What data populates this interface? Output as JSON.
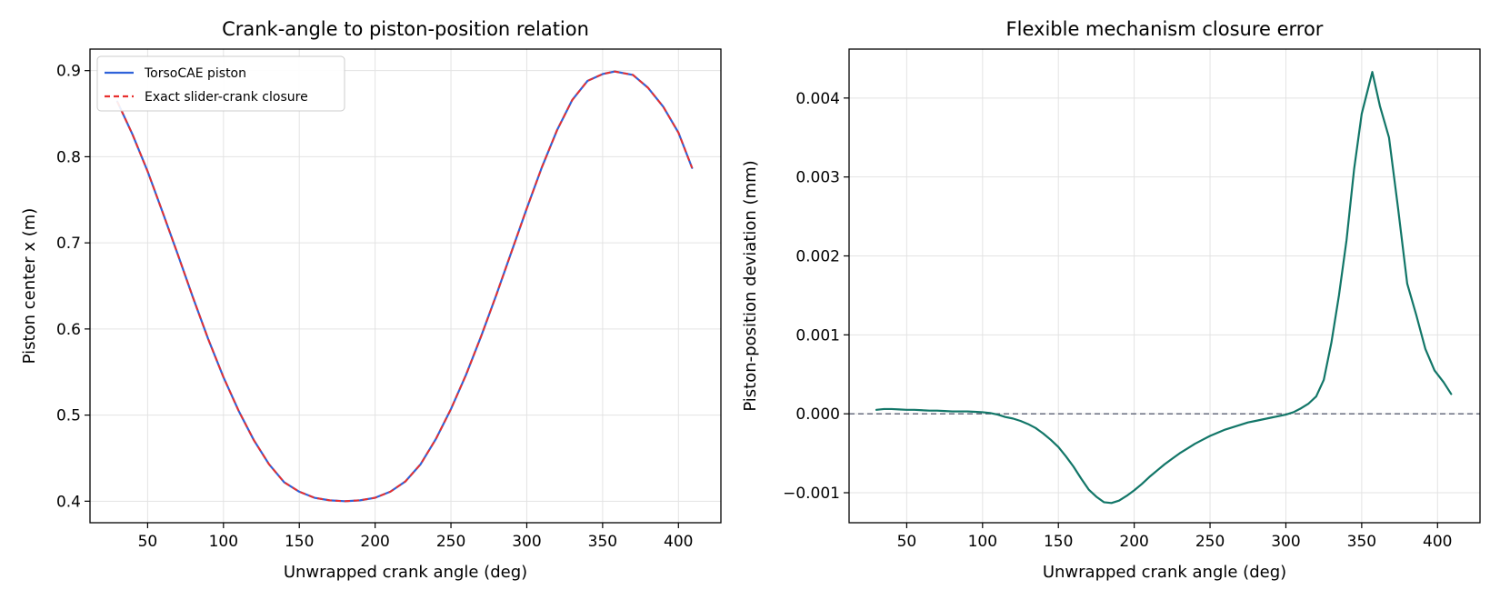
{
  "chart_data": [
    {
      "type": "line",
      "title": "Crank-angle to piston-position relation",
      "xlabel": "Unwrapped crank angle (deg)",
      "ylabel": "Piston center x (m)",
      "xlim": [
        12,
        428
      ],
      "ylim": [
        0.375,
        0.925
      ],
      "xticks": [
        50,
        100,
        150,
        200,
        250,
        300,
        350,
        400
      ],
      "yticks": [
        0.4,
        0.5,
        0.6,
        0.7,
        0.8,
        0.9
      ],
      "ytick_labels": [
        "0.4",
        "0.5",
        "0.6",
        "0.7",
        "0.8",
        "0.9"
      ],
      "grid": true,
      "legend": "upper-left",
      "x": [
        30,
        40,
        50,
        60,
        70,
        80,
        90,
        100,
        110,
        120,
        130,
        140,
        150,
        160,
        170,
        180,
        190,
        200,
        210,
        220,
        230,
        240,
        250,
        260,
        270,
        280,
        290,
        300,
        310,
        320,
        330,
        340,
        350,
        358,
        370,
        380,
        390,
        400,
        409
      ],
      "series": [
        {
          "name": "TorsoCAE piston",
          "color": "#2f62d9",
          "dash": "solid",
          "values": [
            0.864,
            0.826,
            0.783,
            0.735,
            0.686,
            0.636,
            0.588,
            0.544,
            0.505,
            0.471,
            0.443,
            0.422,
            0.411,
            0.404,
            0.401,
            0.4,
            0.401,
            0.404,
            0.411,
            0.423,
            0.443,
            0.472,
            0.507,
            0.547,
            0.592,
            0.64,
            0.69,
            0.74,
            0.788,
            0.831,
            0.866,
            0.888,
            0.896,
            0.899,
            0.895,
            0.88,
            0.858,
            0.828,
            0.787
          ]
        },
        {
          "name": "Exact slider-crank closure",
          "color": "#e8302e",
          "dash": "dashed",
          "values": [
            0.864,
            0.826,
            0.783,
            0.735,
            0.686,
            0.636,
            0.588,
            0.544,
            0.505,
            0.471,
            0.443,
            0.422,
            0.411,
            0.404,
            0.401,
            0.4,
            0.401,
            0.404,
            0.411,
            0.423,
            0.443,
            0.472,
            0.507,
            0.547,
            0.592,
            0.64,
            0.69,
            0.74,
            0.788,
            0.831,
            0.866,
            0.888,
            0.896,
            0.899,
            0.895,
            0.88,
            0.858,
            0.828,
            0.787
          ]
        }
      ]
    },
    {
      "type": "line",
      "title": "Flexible mechanism closure error",
      "xlabel": "Unwrapped crank angle (deg)",
      "ylabel": "Piston-position deviation (mm)",
      "xlim": [
        12,
        428
      ],
      "ylim": [
        -0.00138,
        0.00462
      ],
      "xticks": [
        50,
        100,
        150,
        200,
        250,
        300,
        350,
        400
      ],
      "yticks": [
        -0.001,
        0.0,
        0.001,
        0.002,
        0.003,
        0.004
      ],
      "ytick_labels": [
        "−0.001",
        "0.000",
        "0.001",
        "0.002",
        "0.003",
        "0.004"
      ],
      "grid": true,
      "reference_line": {
        "y": 0.0,
        "color": "#5a5f73",
        "dash": "dashed"
      },
      "x": [
        30,
        35,
        40,
        45,
        50,
        55,
        60,
        65,
        70,
        75,
        80,
        85,
        90,
        95,
        100,
        105,
        110,
        115,
        120,
        125,
        130,
        135,
        140,
        145,
        150,
        155,
        160,
        165,
        170,
        175,
        180,
        185,
        190,
        195,
        200,
        205,
        210,
        215,
        220,
        225,
        230,
        235,
        240,
        245,
        250,
        255,
        260,
        265,
        270,
        275,
        280,
        285,
        290,
        295,
        300,
        305,
        310,
        315,
        320,
        325,
        330,
        335,
        340,
        345,
        350,
        357,
        362,
        368,
        374,
        380,
        386,
        392,
        398,
        404,
        409
      ],
      "series": [
        {
          "name": "",
          "color": "#127668",
          "dash": "solid",
          "values": [
            5e-05,
            6e-05,
            6e-05,
            5.5e-05,
            5e-05,
            5e-05,
            4.5e-05,
            4e-05,
            4e-05,
            3.5e-05,
            3e-05,
            3e-05,
            3e-05,
            2.5e-05,
            2e-05,
            1e-05,
            -1e-05,
            -4e-05,
            -6e-05,
            -9e-05,
            -0.00013,
            -0.00018,
            -0.00025,
            -0.00033,
            -0.00042,
            -0.00054,
            -0.00067,
            -0.00082,
            -0.00096,
            -0.00105,
            -0.00112,
            -0.00113,
            -0.0011,
            -0.00104,
            -0.00097,
            -0.00089,
            -0.0008,
            -0.00072,
            -0.00064,
            -0.00057,
            -0.0005,
            -0.00044,
            -0.00038,
            -0.00033,
            -0.00028,
            -0.00024,
            -0.0002,
            -0.00017,
            -0.00014,
            -0.00011,
            -9e-05,
            -7e-05,
            -5e-05,
            -3e-05,
            -1e-05,
            2e-05,
            7e-05,
            0.00013,
            0.00022,
            0.00043,
            0.0009,
            0.0015,
            0.0022,
            0.0031,
            0.0038,
            0.00433,
            0.0039,
            0.0035,
            0.0026,
            0.00165,
            0.00125,
            0.00082,
            0.00055,
            0.0004,
            0.00025
          ]
        }
      ]
    }
  ]
}
